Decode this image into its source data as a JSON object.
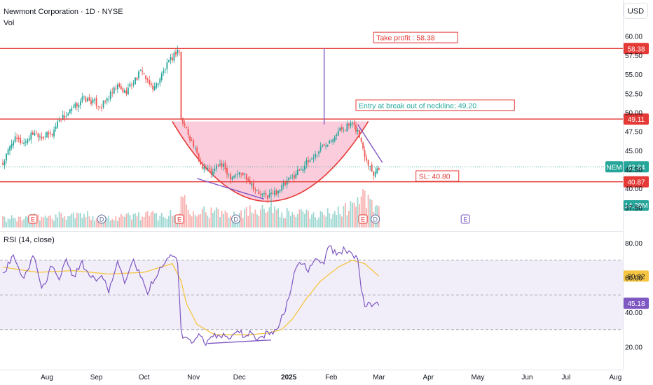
{
  "header": {
    "title": "Newmont Corporation · 1D · NYSE",
    "vol_label": "Vol",
    "currency": "USD",
    "rsi_label": "RSI (14, close)"
  },
  "colors": {
    "up": "#26a69a",
    "down": "#ef5350",
    "level": "#e53935",
    "accent": "#7e57c2",
    "cup_fill": "#f8bbd0",
    "rsi_band": "#ede7f6",
    "rsi_ma": "#f5c542"
  },
  "chart_data": [
    {
      "type": "candlestick",
      "title": "Newmont Corporation · 1D · NYSE",
      "y_ticks": [
        "60.00",
        "57.50",
        "55.00",
        "52.50",
        "50.00",
        "47.50",
        "45.00",
        "42.50",
        "40.00",
        "37.50"
      ],
      "x_ticks": [
        "Aug",
        "Sep",
        "Oct",
        "Nov",
        "Dec",
        "2025",
        "Feb",
        "Mar",
        "Apr",
        "May",
        "Jun",
        "Jul",
        "Aug"
      ],
      "ylim": [
        36.2,
        61.4
      ],
      "price_path": [
        [
          0,
          43.2
        ],
        [
          6,
          46.5
        ],
        [
          12,
          46.0
        ],
        [
          18,
          47.5
        ],
        [
          22,
          46.8
        ],
        [
          28,
          47.2
        ],
        [
          32,
          49.2
        ],
        [
          36,
          49.6
        ],
        [
          40,
          50.5
        ],
        [
          45,
          51.8
        ],
        [
          52,
          51.3
        ],
        [
          56,
          50.8
        ],
        [
          60,
          52.0
        ],
        [
          65,
          53.4
        ],
        [
          69,
          52.6
        ],
        [
          74,
          54.0
        ],
        [
          79,
          55.6
        ],
        [
          82,
          53.8
        ],
        [
          86,
          53.2
        ],
        [
          92,
          55.8
        ],
        [
          96,
          57.2
        ],
        [
          99,
          58.2
        ],
        [
          100,
          58.1
        ],
        [
          101,
          49.0
        ],
        [
          104,
          47.8
        ],
        [
          108,
          45.6
        ],
        [
          112,
          43.2
        ],
        [
          115,
          42.7
        ],
        [
          119,
          42.0
        ],
        [
          122,
          43.2
        ],
        [
          125,
          42.8
        ],
        [
          129,
          41.6
        ],
        [
          133,
          42.0
        ],
        [
          137,
          41.8
        ],
        [
          141,
          40.6
        ],
        [
          145,
          39.2
        ],
        [
          150,
          39.0
        ],
        [
          155,
          39.6
        ],
        [
          160,
          40.6
        ],
        [
          164,
          41.5
        ],
        [
          168,
          42.5
        ],
        [
          173,
          43.5
        ],
        [
          177,
          44.4
        ],
        [
          181,
          45.6
        ],
        [
          185,
          46.4
        ],
        [
          189,
          47.3
        ],
        [
          193,
          48.0
        ],
        [
          197,
          48.4
        ],
        [
          201,
          47.6
        ],
        [
          203,
          46.0
        ],
        [
          205,
          44.5
        ],
        [
          207,
          43.4
        ],
        [
          210,
          42.0
        ],
        [
          213,
          42.84
        ]
      ],
      "volume_path": [
        [
          0,
          0.2
        ],
        [
          20,
          0.25
        ],
        [
          40,
          0.3
        ],
        [
          60,
          0.25
        ],
        [
          80,
          0.3
        ],
        [
          100,
          0.3
        ],
        [
          101,
          1.0
        ],
        [
          104,
          0.5
        ],
        [
          120,
          0.35
        ],
        [
          140,
          0.4
        ],
        [
          150,
          0.55
        ],
        [
          160,
          0.35
        ],
        [
          180,
          0.3
        ],
        [
          195,
          0.45
        ],
        [
          203,
          0.75
        ],
        [
          213,
          0.4
        ]
      ],
      "volume_label": "14.39M",
      "events": [
        {
          "letter": "E",
          "date_index": 17
        },
        {
          "letter": "D",
          "date_index": 56
        },
        {
          "letter": "E",
          "date_index": 100
        },
        {
          "letter": "D",
          "date_index": 132
        },
        {
          "letter": "E",
          "date_index": 204
        },
        {
          "letter": "D",
          "date_index": 211
        },
        {
          "letter": "E",
          "date_index": 262
        }
      ],
      "levels": [
        {
          "price": 58.38,
          "label": "58.38"
        },
        {
          "price": 49.11,
          "label": "49.11"
        },
        {
          "price": 40.87,
          "label": "40.87"
        }
      ],
      "current_price": {
        "symbol": "NEM",
        "value": "42.84",
        "price": 42.84
      },
      "annotations": [
        {
          "text": "Take profit : 58.38",
          "date_index": 210,
          "price": 59.6
        },
        {
          "text": "Entry at break out of neckline; 49.20",
          "date_index": 200,
          "price": 50.7
        },
        {
          "text": "SL: 40.80",
          "date_index": 234,
          "price": 41.4
        }
      ],
      "cup": {
        "start_index": 96,
        "bottom_index": 150,
        "end_index": 207,
        "rim_price": 48.8,
        "bottom_price": 38.3
      },
      "target_arrow": {
        "date_index": 182,
        "from_price": 48.4,
        "to_price": 58.38
      }
    },
    {
      "type": "line",
      "title": "RSI (14, close)",
      "y_ticks": [
        "80.00",
        "60.00",
        "40.00",
        "20.00"
      ],
      "ylim": [
        15,
        84
      ],
      "bands": [
        70,
        50,
        30
      ],
      "rsi_path": [
        [
          0,
          62
        ],
        [
          6,
          72
        ],
        [
          12,
          60
        ],
        [
          18,
          73
        ],
        [
          22,
          52
        ],
        [
          28,
          68
        ],
        [
          32,
          57
        ],
        [
          36,
          72
        ],
        [
          40,
          60
        ],
        [
          45,
          68
        ],
        [
          52,
          58
        ],
        [
          56,
          63
        ],
        [
          60,
          52
        ],
        [
          65,
          70
        ],
        [
          69,
          55
        ],
        [
          74,
          71
        ],
        [
          79,
          58
        ],
        [
          82,
          52
        ],
        [
          86,
          60
        ],
        [
          92,
          70
        ],
        [
          96,
          74
        ],
        [
          99,
          70
        ],
        [
          101,
          28
        ],
        [
          104,
          24
        ],
        [
          108,
          22
        ],
        [
          112,
          27
        ],
        [
          115,
          22
        ],
        [
          119,
          27
        ],
        [
          122,
          25
        ],
        [
          125,
          27
        ],
        [
          129,
          26
        ],
        [
          133,
          30
        ],
        [
          137,
          26
        ],
        [
          141,
          28
        ],
        [
          145,
          25
        ],
        [
          150,
          28
        ],
        [
          155,
          29
        ],
        [
          160,
          42
        ],
        [
          164,
          58
        ],
        [
          168,
          70
        ],
        [
          173,
          64
        ],
        [
          177,
          72
        ],
        [
          181,
          67
        ],
        [
          185,
          78
        ],
        [
          189,
          73
        ],
        [
          193,
          76
        ],
        [
          197,
          73
        ],
        [
          201,
          70
        ],
        [
          203,
          52
        ],
        [
          205,
          45
        ],
        [
          207,
          44
        ],
        [
          210,
          43
        ],
        [
          213,
          45.18
        ]
      ],
      "ma_path": [
        [
          0,
          66
        ],
        [
          20,
          63
        ],
        [
          40,
          64
        ],
        [
          60,
          62
        ],
        [
          80,
          63
        ],
        [
          96,
          68
        ],
        [
          101,
          58
        ],
        [
          104,
          45
        ],
        [
          110,
          33
        ],
        [
          120,
          27
        ],
        [
          140,
          27
        ],
        [
          150,
          28
        ],
        [
          158,
          30
        ],
        [
          164,
          36
        ],
        [
          172,
          48
        ],
        [
          180,
          58
        ],
        [
          190,
          66
        ],
        [
          198,
          70
        ],
        [
          205,
          68
        ],
        [
          213,
          60.82
        ]
      ],
      "last_values": [
        {
          "label": "60.82",
          "value": 60.82,
          "kind": "ma"
        },
        {
          "label": "45.18",
          "value": 45.18,
          "kind": "rsi"
        }
      ],
      "divergence": {
        "from": [
          116,
          22
        ],
        "to": [
          152,
          24
        ]
      }
    }
  ]
}
